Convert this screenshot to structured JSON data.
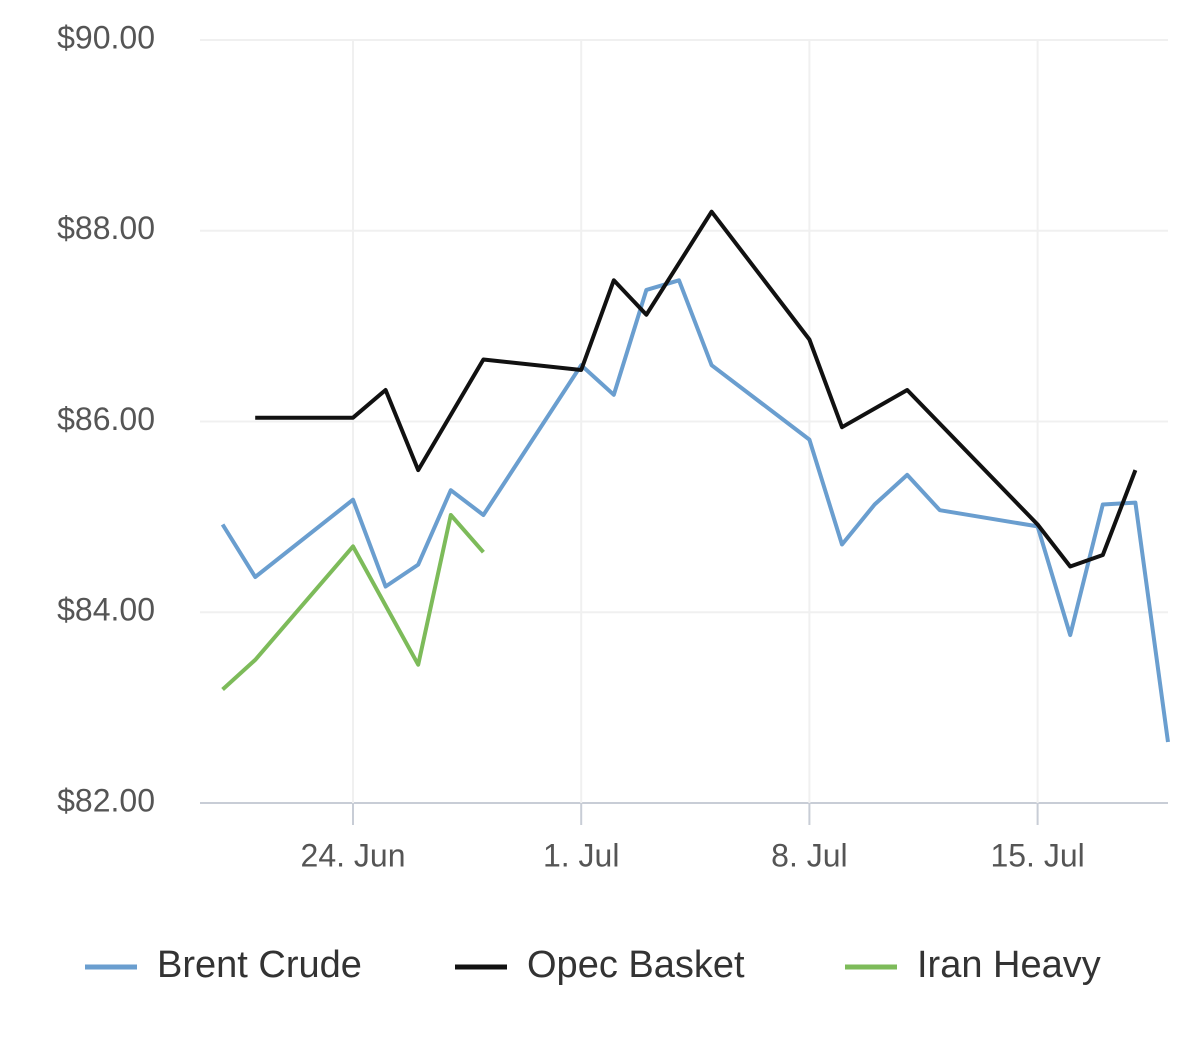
{
  "chart_data": {
    "type": "line",
    "xlim": [
      "19. Jun",
      "19. Jul"
    ],
    "xticks": [
      "24. Jun",
      "1. Jul",
      "8. Jul",
      "15. Jul"
    ],
    "ylim": [
      82,
      90
    ],
    "yticks": [
      {
        "value": 82,
        "label": "$82.00"
      },
      {
        "value": 84,
        "label": "$84.00"
      },
      {
        "value": 86,
        "label": "$86.00"
      },
      {
        "value": 88,
        "label": "$88.00"
      },
      {
        "value": 90,
        "label": "$90.00"
      }
    ],
    "grid": true,
    "legend": "bottom",
    "series": [
      {
        "name": "Brent Crude",
        "color": "#6a9ecf",
        "x": [
          "20. Jun",
          "21. Jun",
          "24. Jun",
          "25. Jun",
          "26. Jun",
          "27. Jun",
          "28. Jun",
          "1. Jul",
          "2. Jul",
          "3. Jul",
          "4. Jul",
          "5. Jul",
          "8. Jul",
          "9. Jul",
          "10. Jul",
          "11. Jul",
          "12. Jul",
          "15. Jul",
          "16. Jul",
          "17. Jul",
          "18. Jul",
          "19. Jul"
        ],
        "values": [
          84.92,
          84.37,
          85.18,
          84.27,
          84.5,
          85.28,
          85.02,
          86.59,
          86.28,
          87.38,
          87.48,
          86.59,
          85.81,
          84.71,
          85.13,
          85.44,
          85.07,
          84.9,
          83.76,
          85.13,
          85.15,
          82.64
        ]
      },
      {
        "name": "Opec Basket",
        "color": "#111111",
        "x": [
          "21. Jun",
          "24. Jun",
          "25. Jun",
          "26. Jun",
          "28. Jun",
          "1. Jul",
          "2. Jul",
          "3. Jul",
          "5. Jul",
          "8. Jul",
          "9. Jul",
          "11. Jul",
          "15. Jul",
          "16. Jul",
          "17. Jul",
          "18. Jul"
        ],
        "values": [
          86.04,
          86.04,
          86.33,
          85.49,
          86.65,
          86.54,
          87.48,
          87.12,
          88.2,
          86.86,
          85.94,
          86.33,
          84.92,
          84.48,
          84.6,
          85.49
        ]
      },
      {
        "name": "Iran Heavy",
        "color": "#7dbb5a",
        "x": [
          "20. Jun",
          "21. Jun",
          "24. Jun",
          "26. Jun",
          "27. Jun",
          "28. Jun"
        ],
        "values": [
          83.19,
          83.5,
          84.69,
          83.45,
          85.02,
          84.63
        ]
      }
    ]
  }
}
